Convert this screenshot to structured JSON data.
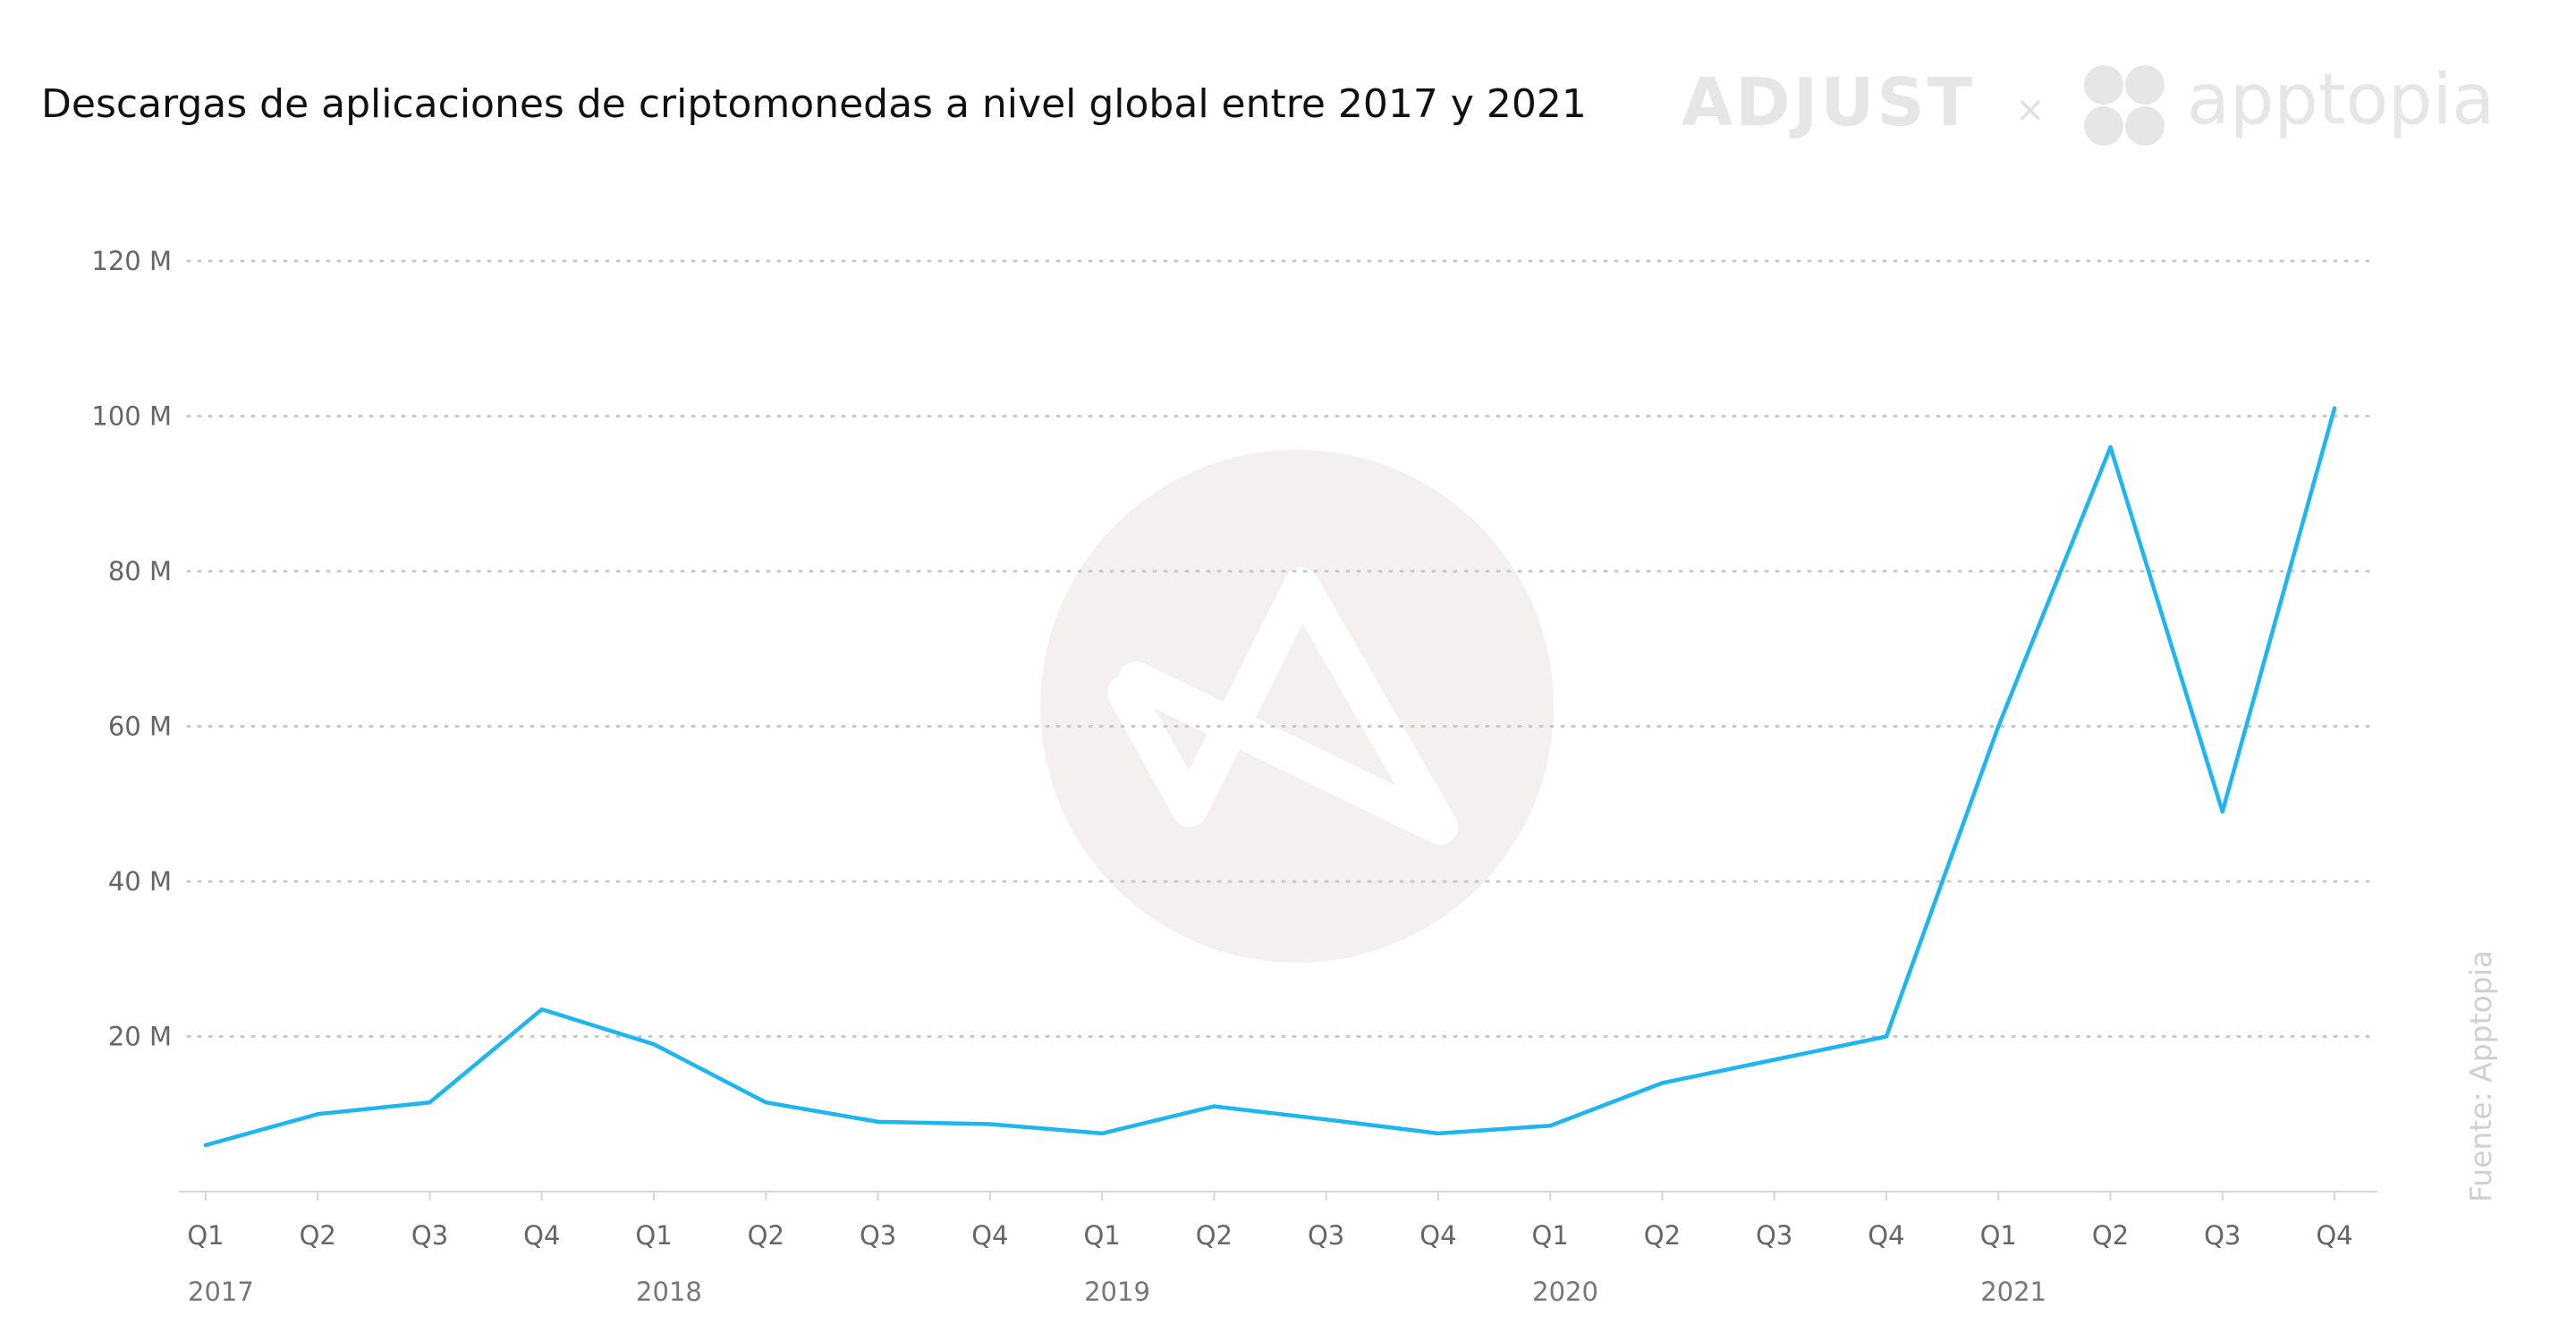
{
  "header": {
    "title": "Descargas de aplicaciones de criptomonedas a nivel global entre 2017 y 2021"
  },
  "logos": {
    "left": "ADJUST",
    "separator": "×",
    "right": "apptopia"
  },
  "source": {
    "text": "Fuente: Apptopia"
  },
  "colors": {
    "line": "#1eb6ef",
    "watermark": "#f3efef",
    "logo": "#e6e6e6"
  },
  "chart_data": {
    "type": "line",
    "title": "Descargas de aplicaciones de criptomonedas a nivel global entre 2017 y 2021",
    "xlabel": "",
    "ylabel": "",
    "ylim": [
      0,
      120
    ],
    "y_unit": "M",
    "y_ticks": [
      {
        "value": 20,
        "label": "20 M"
      },
      {
        "value": 40,
        "label": "40 M"
      },
      {
        "value": 60,
        "label": "60 M"
      },
      {
        "value": 80,
        "label": "80 M"
      },
      {
        "value": 100,
        "label": "100 M"
      },
      {
        "value": 120,
        "label": "120 M"
      }
    ],
    "grid": true,
    "legend": "none",
    "categories": [
      "Q1",
      "Q2",
      "Q3",
      "Q4",
      "Q1",
      "Q2",
      "Q3",
      "Q4",
      "Q1",
      "Q2",
      "Q3",
      "Q4",
      "Q1",
      "Q2",
      "Q3",
      "Q4",
      "Q1",
      "Q2",
      "Q3",
      "Q4"
    ],
    "years": [
      {
        "label": "2017",
        "index": 0
      },
      {
        "label": "2018",
        "index": 4
      },
      {
        "label": "2019",
        "index": 8
      },
      {
        "label": "2020",
        "index": 12
      },
      {
        "label": "2021",
        "index": 16
      }
    ],
    "series": [
      {
        "values": [
          6,
          10,
          11.5,
          23.5,
          19,
          11.5,
          9,
          8.7,
          7.5,
          11,
          9.3,
          7.5,
          8.5,
          14,
          17,
          20,
          60,
          96,
          49,
          101
        ]
      }
    ]
  }
}
